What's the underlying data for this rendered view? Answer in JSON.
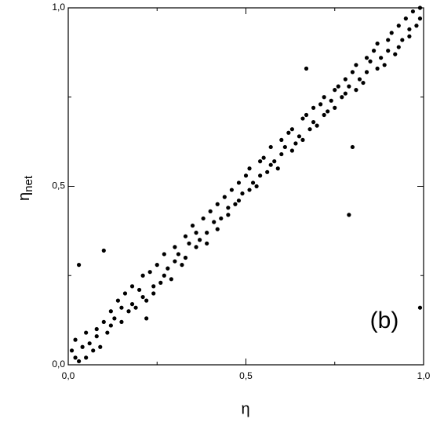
{
  "chart_data": {
    "type": "scatter",
    "xlabel": "η",
    "ylabel": {
      "main": "η",
      "sub": "net"
    },
    "annotation": "(b)",
    "color": "#000000",
    "xlim": [
      0,
      1
    ],
    "ylim": [
      0,
      1
    ],
    "xticks": [
      {
        "value": 0,
        "label": "0,0"
      },
      {
        "value": 0.5,
        "label": "0,5"
      },
      {
        "value": 1,
        "label": "1,0"
      }
    ],
    "yticks": [
      {
        "value": 0,
        "label": "0,0"
      },
      {
        "value": 0.5,
        "label": "0,5"
      },
      {
        "value": 1,
        "label": "1,0"
      }
    ],
    "xminorticks": [
      0.25,
      0.75
    ],
    "yminorticks": [
      0.25,
      0.75
    ],
    "x": [
      0.01,
      0.02,
      0.02,
      0.03,
      0.04,
      0.05,
      0.05,
      0.06,
      0.07,
      0.08,
      0.08,
      0.09,
      0.1,
      0.11,
      0.12,
      0.12,
      0.13,
      0.14,
      0.15,
      0.15,
      0.16,
      0.17,
      0.18,
      0.18,
      0.19,
      0.2,
      0.21,
      0.21,
      0.22,
      0.23,
      0.24,
      0.24,
      0.25,
      0.26,
      0.27,
      0.27,
      0.28,
      0.29,
      0.3,
      0.3,
      0.31,
      0.32,
      0.33,
      0.33,
      0.34,
      0.35,
      0.36,
      0.36,
      0.37,
      0.38,
      0.39,
      0.39,
      0.4,
      0.41,
      0.42,
      0.42,
      0.43,
      0.44,
      0.45,
      0.45,
      0.46,
      0.47,
      0.48,
      0.48,
      0.49,
      0.5,
      0.51,
      0.51,
      0.52,
      0.53,
      0.54,
      0.54,
      0.55,
      0.56,
      0.57,
      0.57,
      0.58,
      0.59,
      0.6,
      0.6,
      0.61,
      0.62,
      0.63,
      0.63,
      0.64,
      0.65,
      0.66,
      0.66,
      0.67,
      0.68,
      0.69,
      0.69,
      0.7,
      0.71,
      0.72,
      0.72,
      0.73,
      0.74,
      0.75,
      0.75,
      0.76,
      0.77,
      0.78,
      0.78,
      0.79,
      0.8,
      0.81,
      0.81,
      0.82,
      0.83,
      0.84,
      0.84,
      0.85,
      0.86,
      0.87,
      0.87,
      0.88,
      0.89,
      0.9,
      0.9,
      0.91,
      0.92,
      0.93,
      0.93,
      0.94,
      0.95,
      0.96,
      0.96,
      0.97,
      0.98,
      0.99,
      0.99,
      0.03,
      0.1,
      0.79,
      0.8,
      0.67,
      0.99,
      0.22
    ],
    "values": [
      0.04,
      0.02,
      0.07,
      0.01,
      0.05,
      0.02,
      0.09,
      0.06,
      0.04,
      0.1,
      0.08,
      0.05,
      0.12,
      0.09,
      0.15,
      0.11,
      0.13,
      0.18,
      0.12,
      0.16,
      0.2,
      0.15,
      0.17,
      0.22,
      0.16,
      0.21,
      0.19,
      0.25,
      0.18,
      0.26,
      0.22,
      0.2,
      0.28,
      0.23,
      0.25,
      0.31,
      0.27,
      0.24,
      0.33,
      0.29,
      0.31,
      0.28,
      0.36,
      0.3,
      0.34,
      0.39,
      0.33,
      0.37,
      0.35,
      0.41,
      0.37,
      0.34,
      0.43,
      0.4,
      0.38,
      0.45,
      0.41,
      0.47,
      0.42,
      0.44,
      0.49,
      0.45,
      0.51,
      0.46,
      0.48,
      0.53,
      0.49,
      0.55,
      0.51,
      0.5,
      0.57,
      0.53,
      0.58,
      0.54,
      0.56,
      0.61,
      0.57,
      0.55,
      0.63,
      0.59,
      0.61,
      0.65,
      0.6,
      0.66,
      0.62,
      0.64,
      0.69,
      0.63,
      0.7,
      0.66,
      0.68,
      0.72,
      0.67,
      0.73,
      0.7,
      0.75,
      0.71,
      0.74,
      0.77,
      0.72,
      0.78,
      0.75,
      0.8,
      0.76,
      0.78,
      0.82,
      0.77,
      0.84,
      0.8,
      0.79,
      0.86,
      0.82,
      0.85,
      0.88,
      0.83,
      0.9,
      0.86,
      0.84,
      0.91,
      0.88,
      0.93,
      0.87,
      0.89,
      0.95,
      0.91,
      0.97,
      0.92,
      0.94,
      0.99,
      0.95,
      1.0,
      0.97,
      0.28,
      0.32,
      0.42,
      0.61,
      0.83,
      0.16,
      0.13
    ]
  }
}
